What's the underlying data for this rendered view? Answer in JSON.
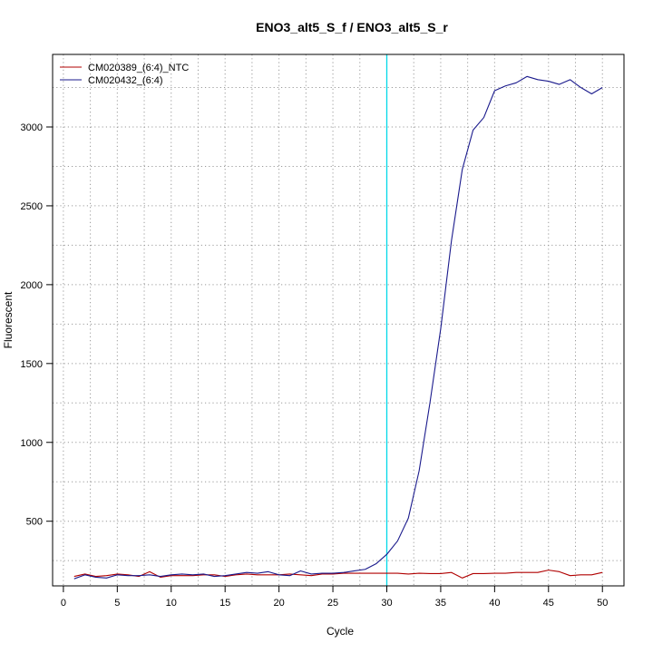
{
  "chart_data": {
    "type": "line",
    "title": "ENO3_alt5_S_f / ENO3_alt5_S_r",
    "xlabel": "Cycle",
    "ylabel": "Fluorescent",
    "xlim": [
      -1,
      52
    ],
    "ylim": [
      90,
      3460
    ],
    "xticks": [
      "0",
      "5",
      "10",
      "15",
      "20",
      "25",
      "30",
      "35",
      "40",
      "45",
      "50"
    ],
    "yticks": [
      "500",
      "1000",
      "1500",
      "2000",
      "2500",
      "3000"
    ],
    "grid": true,
    "threshold_line": {
      "x": 30,
      "color": "#00d8e8"
    },
    "legend_position": "top-left",
    "x": [
      1,
      2,
      3,
      4,
      5,
      6,
      7,
      8,
      9,
      10,
      11,
      12,
      13,
      14,
      15,
      16,
      17,
      18,
      19,
      20,
      21,
      22,
      23,
      24,
      25,
      26,
      27,
      28,
      29,
      30,
      31,
      32,
      33,
      34,
      35,
      36,
      37,
      38,
      39,
      40,
      41,
      42,
      43,
      44,
      45,
      46,
      47,
      48,
      49,
      50
    ],
    "series": [
      {
        "name": "CM020389_(6:4)_NTC",
        "color": "#b00000",
        "values": [
          150,
          165,
          150,
          155,
          165,
          160,
          150,
          180,
          145,
          155,
          155,
          155,
          160,
          160,
          150,
          160,
          165,
          160,
          160,
          160,
          165,
          160,
          155,
          165,
          165,
          170,
          170,
          170,
          170,
          170,
          170,
          165,
          170,
          168,
          168,
          175,
          140,
          168,
          168,
          170,
          170,
          175,
          175,
          175,
          190,
          180,
          155,
          160,
          160,
          175
        ]
      },
      {
        "name": "CM020432_(6:4)",
        "color": "#1a1a8c",
        "values": [
          135,
          160,
          145,
          140,
          160,
          155,
          155,
          160,
          150,
          160,
          165,
          160,
          165,
          150,
          155,
          165,
          175,
          170,
          180,
          160,
          155,
          185,
          165,
          170,
          170,
          175,
          185,
          195,
          230,
          290,
          375,
          520,
          820,
          1250,
          1720,
          2280,
          2730,
          2980,
          3060,
          3230,
          3260,
          3280,
          3320,
          3300,
          3290,
          3270,
          3300,
          3250,
          3210,
          3250
        ]
      }
    ]
  }
}
